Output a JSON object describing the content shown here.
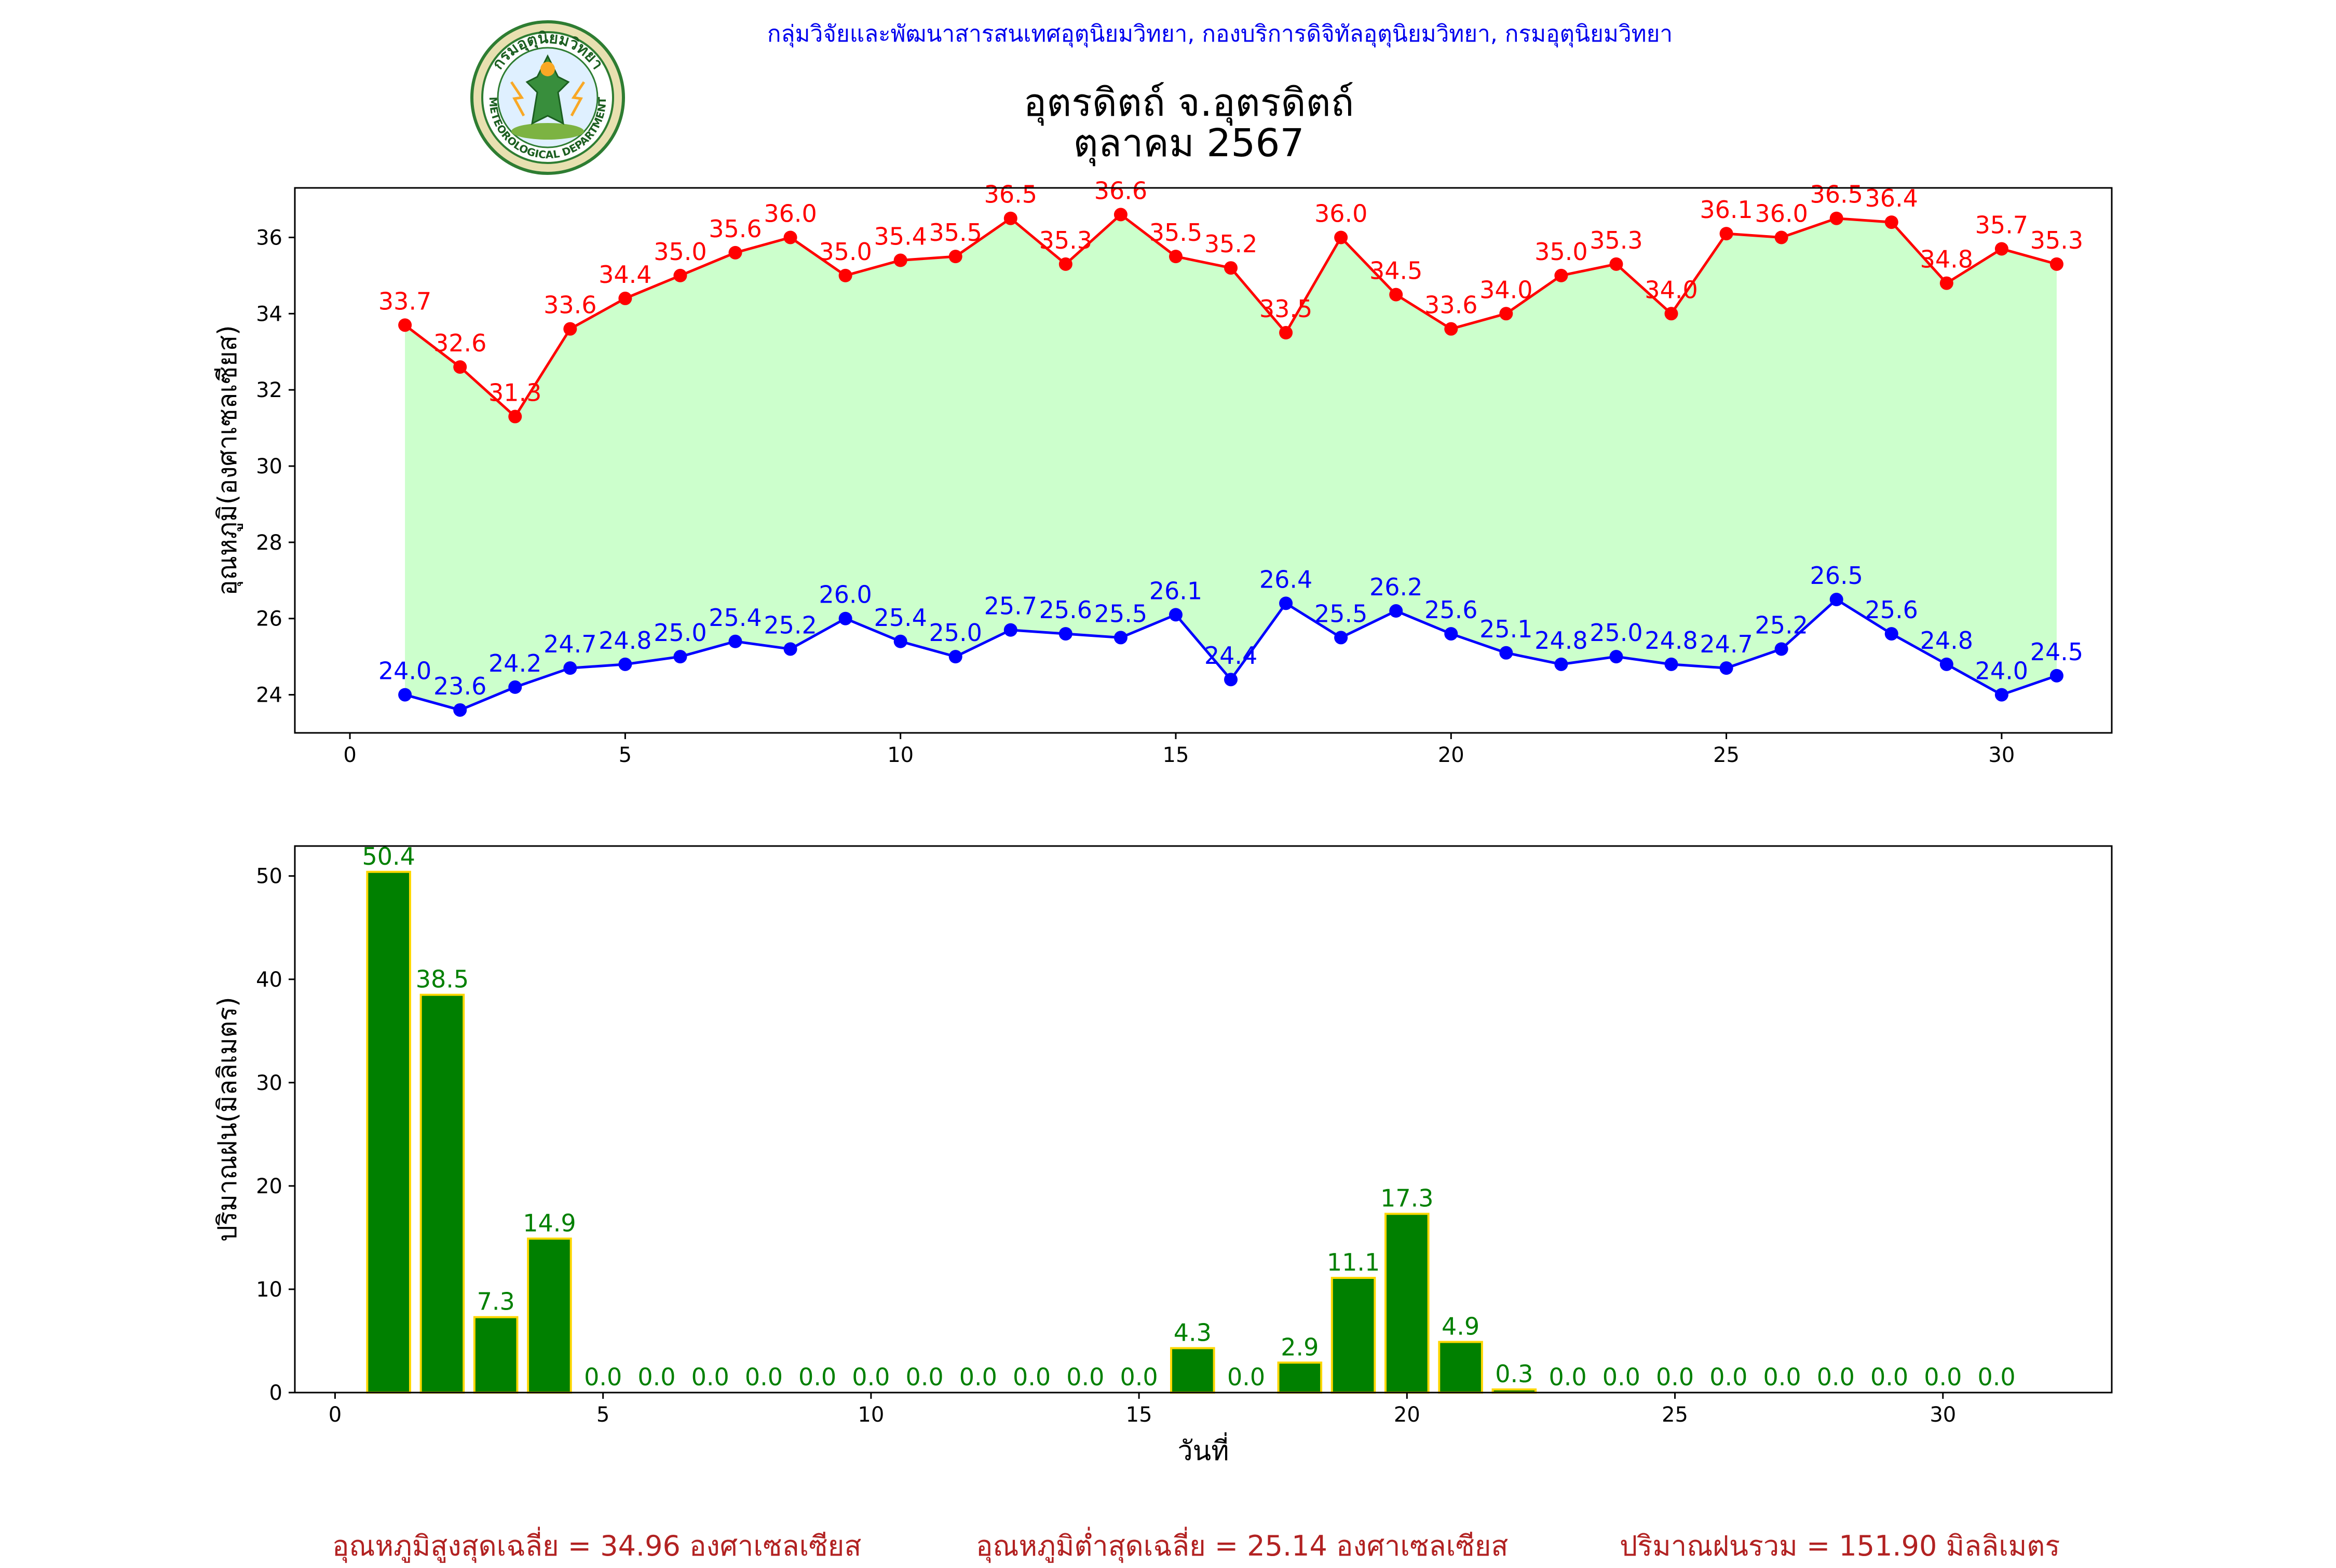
{
  "header": {
    "credit": "กลุ่มวิจัยและพัฒนาสารสนเทศอุตุนิยมวิทยา, กองบริการดิจิทัลอุตุนิยมวิทยา, กรมอุตุนิยมวิทยา",
    "station": "อุตรดิตถ์ จ.อุตรดิตถ์",
    "period": "ตุลาคม 2567",
    "logo_text_top": "กรมอุตุนิยมวิทยา",
    "logo_text_bottom": "METEOROLOGICAL DEPARTMENT"
  },
  "summary": {
    "avg_max": "อุณหภูมิสูงสุดเฉลี่ย = 34.96 องศาเซลเซียส",
    "avg_min": "อุณหภูมิต่ำสุดเฉลี่ย = 25.14 องศาเซลเซียส",
    "total_rain": "ปริมาณฝนรวม = 151.90 มิลลิเมตร"
  },
  "chart_data": [
    {
      "type": "line",
      "ylabel": "อุณหภูมิ(องศาเซลเซียส)",
      "xlabel": "",
      "xlim": [
        -1,
        32
      ],
      "ylim": [
        23.0,
        37.3
      ],
      "xticks": [
        0,
        5,
        10,
        15,
        20,
        25,
        30
      ],
      "yticks": [
        24,
        26,
        28,
        30,
        32,
        34,
        36
      ],
      "x": [
        1,
        2,
        3,
        4,
        5,
        6,
        7,
        8,
        9,
        10,
        11,
        12,
        13,
        14,
        15,
        16,
        17,
        18,
        19,
        20,
        21,
        22,
        23,
        24,
        25,
        26,
        27,
        28,
        29,
        30,
        31
      ],
      "series": [
        {
          "name": "",
          "color": "#ff0000",
          "values": [
            33.7,
            32.6,
            31.3,
            33.6,
            34.4,
            35.0,
            35.6,
            36.0,
            35.0,
            35.4,
            35.5,
            36.5,
            35.3,
            36.6,
            35.5,
            35.2,
            33.5,
            36.0,
            34.5,
            33.6,
            34.0,
            35.0,
            35.3,
            34.0,
            36.1,
            36.0,
            36.5,
            36.4,
            34.8,
            35.7,
            35.3
          ]
        },
        {
          "name": "",
          "color": "#0000ff",
          "values": [
            24.0,
            23.6,
            24.2,
            24.7,
            24.8,
            25.0,
            25.4,
            25.2,
            26.0,
            25.4,
            25.0,
            25.7,
            25.6,
            25.5,
            26.1,
            24.4,
            26.4,
            25.5,
            26.2,
            25.6,
            25.1,
            24.8,
            25.0,
            24.8,
            24.7,
            25.2,
            26.5,
            25.6,
            24.8,
            24.0,
            24.5
          ]
        }
      ],
      "fill_color": "#ccffcc"
    },
    {
      "type": "bar",
      "xlabel": "วันที่",
      "ylabel": "ปริมาณฝน(มิลลิเมตร)",
      "xlim": [
        -0.75,
        33.15
      ],
      "ylim": [
        0,
        52.9
      ],
      "xticks": [
        0,
        5,
        10,
        15,
        20,
        25,
        30
      ],
      "yticks": [
        0,
        10,
        20,
        30,
        40,
        50
      ],
      "x": [
        1,
        2,
        3,
        4,
        5,
        6,
        7,
        8,
        9,
        10,
        11,
        12,
        13,
        14,
        15,
        16,
        17,
        18,
        19,
        20,
        21,
        22,
        23,
        24,
        25,
        26,
        27,
        28,
        29,
        30,
        31
      ],
      "values": [
        50.4,
        38.5,
        7.3,
        14.9,
        0.0,
        0.0,
        0.0,
        0.0,
        0.0,
        0.0,
        0.0,
        0.0,
        0.0,
        0.0,
        0.0,
        4.3,
        0.0,
        2.9,
        11.1,
        17.3,
        4.9,
        0.3,
        0.0,
        0.0,
        0.0,
        0.0,
        0.0,
        0.0,
        0.0,
        0.0,
        0.0
      ],
      "bar_color": "#008000",
      "edge_color": "#ffd700",
      "label_color": "#008000"
    }
  ]
}
